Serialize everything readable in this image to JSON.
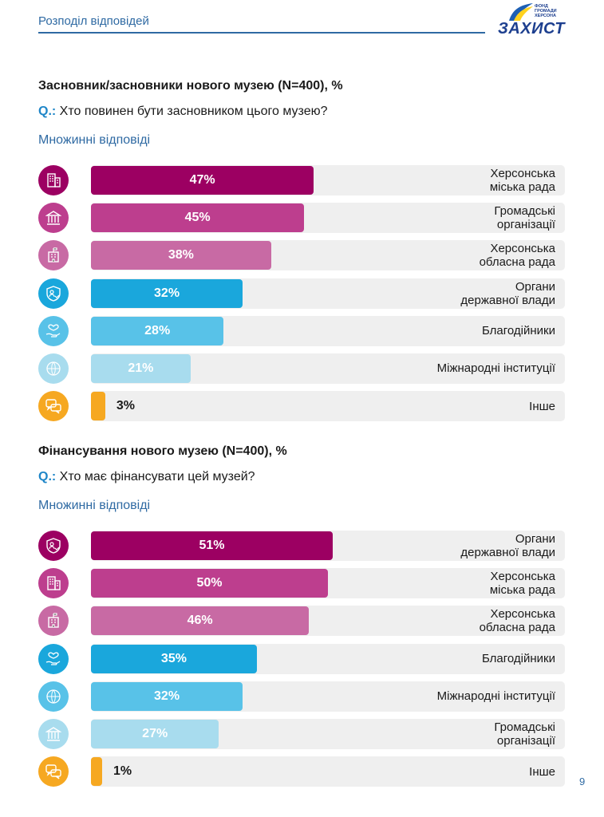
{
  "header": {
    "title": "Розподіл відповідей"
  },
  "logo": {
    "fund_text": "ФОНД\nГРОМАДИ\nХЕРСОНА",
    "wordmark": "ЗАХИСТ"
  },
  "colors": {
    "c1": "#9c0062",
    "c2": "#bd3e8e",
    "c3": "#c86aa4",
    "c4": "#1aa7dc",
    "c5": "#58c2e8",
    "c6": "#a8dcee",
    "c7": "#f6a821",
    "track": "#efefef",
    "accent_blue": "#2f6aa3"
  },
  "sections": [
    {
      "title": "Засновник/засновники нового музею (N=400), %",
      "q_label": "Q.:",
      "question": "Хто повинен бути засновником цього музею?",
      "multi": "Множинні відповіді"
    },
    {
      "title": "Фінансування нового музею (N=400), %",
      "q_label": "Q.:",
      "question": "Хто  має фінансувати цей музей?",
      "multi": "Множинні відповіді"
    }
  ],
  "chart_data": [
    {
      "type": "bar",
      "orientation": "horizontal",
      "title": "Засновник/засновники нового музею (N=400), %",
      "xlim": [
        0,
        100
      ],
      "categories": [
        "Херсонська\nміська рада",
        "Громадські\nорганізації",
        "Херсонська\nобласна рада",
        "Органи\nдержавної влади",
        "Благодійники",
        "Міжнародні інституції",
        "Інше"
      ],
      "values": [
        47,
        45,
        38,
        32,
        28,
        21,
        3
      ],
      "labels": [
        "47%",
        "45%",
        "38%",
        "32%",
        "28%",
        "21%",
        "3%"
      ],
      "bar_colors": [
        "#9c0062",
        "#bd3e8e",
        "#c86aa4",
        "#1aa7dc",
        "#58c2e8",
        "#a8dcee",
        "#f6a821"
      ],
      "icons": [
        "city-building-icon",
        "public-building-icon",
        "regional-building-icon",
        "shield-people-icon",
        "heart-hand-icon",
        "handshake-globe-icon",
        "chat-bubbles-icon"
      ]
    },
    {
      "type": "bar",
      "orientation": "horizontal",
      "title": "Фінансування нового музею (N=400), %",
      "xlim": [
        0,
        100
      ],
      "categories": [
        "Органи\nдержавної влади",
        "Херсонська\nміська рада",
        "Херсонська\nобласна рада",
        "Благодійники",
        "Міжнародні інституції",
        "Громадські\nорганізації",
        "Інше"
      ],
      "values": [
        51,
        50,
        46,
        35,
        32,
        27,
        1
      ],
      "labels": [
        "51%",
        "50%",
        "46%",
        "35%",
        "32%",
        "27%",
        "1%"
      ],
      "bar_colors": [
        "#9c0062",
        "#bd3e8e",
        "#c86aa4",
        "#1aa7dc",
        "#58c2e8",
        "#a8dcee",
        "#f6a821"
      ],
      "icons": [
        "shield-people-icon",
        "city-building-icon",
        "regional-building-icon",
        "heart-hand-icon",
        "handshake-globe-icon",
        "public-building-icon",
        "chat-bubbles-icon"
      ]
    }
  ],
  "page_number": "9"
}
